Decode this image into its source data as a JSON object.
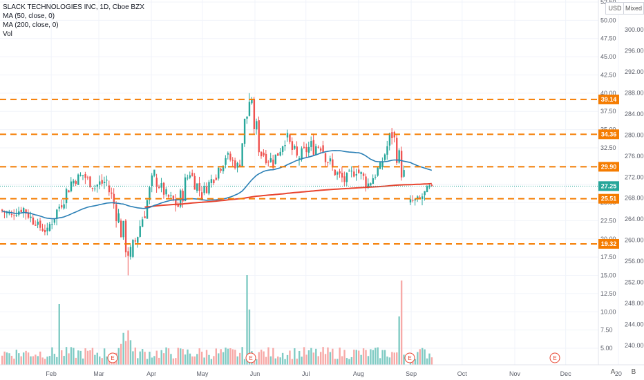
{
  "legend": {
    "title": "SLACK TECHNOLOGIES INC, 1D, Cboe BZX",
    "ma50": "MA (50, close, 0)",
    "ma200": "MA (200, close, 0)",
    "vol": "Vol"
  },
  "buttons": {
    "unit": "USD",
    "mixed": "Mixed",
    "auto": "A",
    "base": "B"
  },
  "colors": {
    "up": "#26a69a",
    "down": "#ef5350",
    "vol_up": "#80cbc4",
    "vol_down": "#f7a9a7",
    "ma50": "#2a7fb5",
    "ma200": "#e8442f",
    "level": "#f57c00",
    "price_tag": "#26a69a",
    "grid": "#f0f3fa",
    "axis_text": "#5d606b"
  },
  "chart_data": {
    "type": "candlestick",
    "left_axis_ticks": [
      "52.50",
      "50.00",
      "47.50",
      "45.00",
      "42.50",
      "40.00",
      "37.50",
      "35.00",
      "32.50",
      "30.00",
      "27.50",
      "25.00",
      "22.50",
      "20.00",
      "17.50",
      "15.00",
      "12.50",
      "10.00",
      "7.50",
      "5.00"
    ],
    "right_axis_ticks": [
      "300.00",
      "296.00",
      "292.00",
      "288.00",
      "284.00",
      "280.00",
      "276.00",
      "272.00",
      "268.00",
      "264.00",
      "260.00",
      "256.00",
      "252.00",
      "248.00",
      "244.00",
      "240.00"
    ],
    "x_ticks": [
      "Feb",
      "Mar",
      "Apr",
      "May",
      "Jun",
      "Jul",
      "Aug",
      "Sep",
      "Oct",
      "Nov",
      "Dec",
      "20"
    ],
    "horizontal_levels": [
      "39.14",
      "34.36",
      "29.90",
      "25.51",
      "19.32"
    ],
    "last_price": "27.25",
    "earnings_markers": [
      "E",
      "E",
      "E",
      "E"
    ],
    "candles_weekly_approx": [
      {
        "week": "Jan-1",
        "o": 24.0,
        "h": 25.0,
        "l": 22.8,
        "c": 23.2
      },
      {
        "week": "Jan-2",
        "o": 23.4,
        "h": 24.8,
        "l": 22.6,
        "c": 24.2
      },
      {
        "week": "Jan-3",
        "o": 24.1,
        "h": 24.7,
        "l": 21.8,
        "c": 22.1
      },
      {
        "week": "Jan-4",
        "o": 22.0,
        "h": 23.0,
        "l": 20.5,
        "c": 21.0
      },
      {
        "week": "Feb-1",
        "o": 21.3,
        "h": 24.8,
        "l": 21.0,
        "c": 24.5
      },
      {
        "week": "Feb-2",
        "o": 24.5,
        "h": 28.5,
        "l": 24.0,
        "c": 27.8
      },
      {
        "week": "Feb-3",
        "o": 27.8,
        "h": 29.8,
        "l": 26.8,
        "c": 28.8
      },
      {
        "week": "Feb-4",
        "o": 28.8,
        "h": 29.5,
        "l": 26.5,
        "c": 27.0
      },
      {
        "week": "Mar-1",
        "o": 27.2,
        "h": 29.6,
        "l": 25.0,
        "c": 28.0
      },
      {
        "week": "Mar-2",
        "o": 27.5,
        "h": 28.0,
        "l": 21.5,
        "c": 23.0
      },
      {
        "week": "Mar-3",
        "o": 22.5,
        "h": 23.5,
        "l": 15.0,
        "c": 17.5
      },
      {
        "week": "Mar-4",
        "o": 17.5,
        "h": 23.5,
        "l": 17.0,
        "c": 23.0
      },
      {
        "week": "Apr-1",
        "o": 23.0,
        "h": 29.5,
        "l": 22.8,
        "c": 28.5
      },
      {
        "week": "Apr-2",
        "o": 28.3,
        "h": 29.0,
        "l": 25.5,
        "c": 26.0
      },
      {
        "week": "Apr-3",
        "o": 26.0,
        "h": 27.0,
        "l": 23.5,
        "c": 24.5
      },
      {
        "week": "Apr-4",
        "o": 24.5,
        "h": 30.0,
        "l": 24.0,
        "c": 29.5
      },
      {
        "week": "May-1",
        "o": 29.0,
        "h": 30.0,
        "l": 25.5,
        "c": 26.2
      },
      {
        "week": "May-2",
        "o": 26.2,
        "h": 29.5,
        "l": 26.0,
        "c": 28.5
      },
      {
        "week": "May-3",
        "o": 28.5,
        "h": 32.5,
        "l": 28.0,
        "c": 31.5
      },
      {
        "week": "May-4",
        "o": 31.5,
        "h": 32.0,
        "l": 29.0,
        "c": 30.0
      },
      {
        "week": "Jun-1",
        "o": 30.2,
        "h": 40.0,
        "l": 30.0,
        "c": 38.8
      },
      {
        "week": "Jun-2",
        "o": 38.5,
        "h": 39.5,
        "l": 31.0,
        "c": 32.0
      },
      {
        "week": "Jun-3",
        "o": 32.0,
        "h": 33.5,
        "l": 29.5,
        "c": 30.5
      },
      {
        "week": "Jun-4",
        "o": 30.5,
        "h": 35.0,
        "l": 30.2,
        "c": 34.0
      },
      {
        "week": "Jul-1",
        "o": 34.0,
        "h": 35.0,
        "l": 30.0,
        "c": 31.0
      },
      {
        "week": "Jul-2",
        "o": 31.0,
        "h": 33.5,
        "l": 29.8,
        "c": 32.5
      },
      {
        "week": "Jul-3",
        "o": 32.5,
        "h": 36.5,
        "l": 31.5,
        "c": 33.0
      },
      {
        "week": "Jul-4",
        "o": 33.0,
        "h": 33.5,
        "l": 28.5,
        "c": 29.5
      },
      {
        "week": "Aug-1",
        "o": 29.5,
        "h": 30.5,
        "l": 27.0,
        "c": 28.0
      },
      {
        "week": "Aug-2",
        "o": 28.0,
        "h": 30.0,
        "l": 26.8,
        "c": 29.5
      },
      {
        "week": "Aug-3",
        "o": 29.5,
        "h": 30.5,
        "l": 26.5,
        "c": 27.5
      },
      {
        "week": "Aug-4",
        "o": 27.5,
        "h": 30.5,
        "l": 27.0,
        "c": 30.0
      },
      {
        "week": "Sep-1",
        "o": 30.0,
        "h": 35.5,
        "l": 29.5,
        "c": 34.5
      },
      {
        "week": "Sep-2",
        "o": 34.5,
        "h": 35.0,
        "l": 28.0,
        "c": 28.5
      },
      {
        "week": "Sep-3",
        "o": 25.0,
        "h": 26.0,
        "l": 24.0,
        "c": 25.5
      },
      {
        "week": "Sep-4",
        "o": 25.5,
        "h": 27.5,
        "l": 24.5,
        "c": 27.25
      }
    ]
  }
}
